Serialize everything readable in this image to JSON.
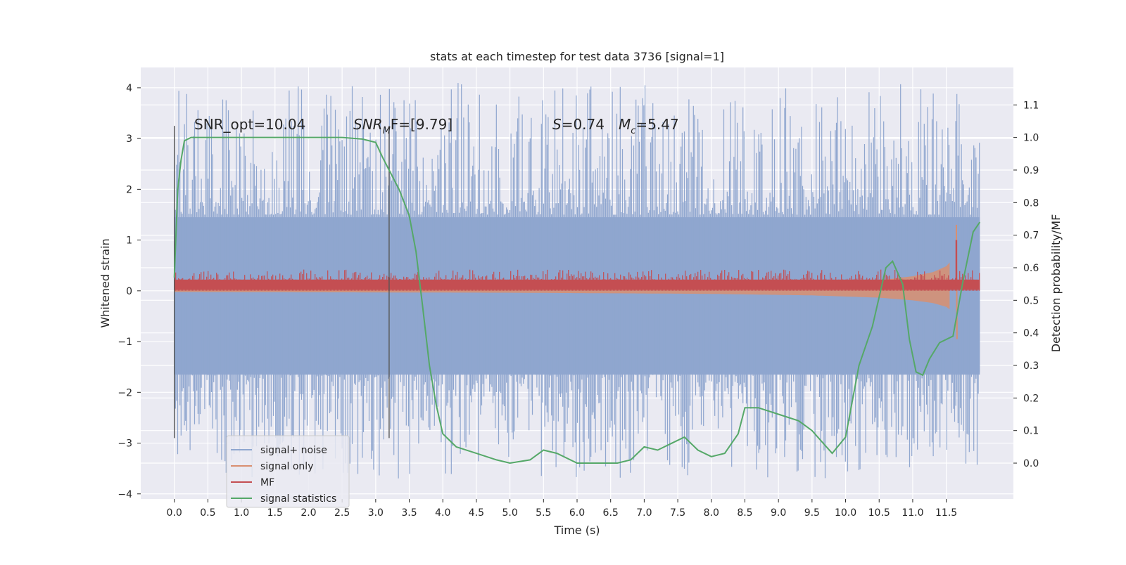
{
  "chart_data": {
    "type": "line",
    "title": "stats at each timestep for test data 3736 [signal=1]",
    "xlabel": "Time (s)",
    "ylabel": "Whitened strain",
    "y2label": "Detection probability/MF",
    "xlim": [
      -0.5,
      12.5
    ],
    "ylim": [
      -4.1,
      4.4
    ],
    "y2lim": [
      -0.11,
      1.215
    ],
    "x_ticks": [
      "0.0",
      "0.5",
      "1.0",
      "1.5",
      "2.0",
      "2.5",
      "3.0",
      "3.5",
      "4.0",
      "4.5",
      "5.0",
      "5.5",
      "6.0",
      "6.5",
      "7.0",
      "7.5",
      "8.0",
      "8.5",
      "9.0",
      "9.5",
      "10.0",
      "10.5",
      "11.0",
      "11.5"
    ],
    "y_ticks": [
      4,
      3,
      2,
      1,
      0,
      -1,
      -2,
      -3,
      -4
    ],
    "y_tick_labels": [
      "4",
      "3",
      "2",
      "1",
      "0",
      "−1",
      "−2",
      "−3",
      "−4"
    ],
    "y2_ticks": [
      1.1,
      1.0,
      0.9,
      0.8,
      0.7,
      0.6,
      0.5,
      0.4,
      0.3,
      0.2,
      0.1,
      0.0
    ],
    "y2_tick_labels": [
      "1.1",
      "1.0",
      "0.9",
      "0.8",
      "0.7",
      "0.6",
      "0.5",
      "0.4",
      "0.3",
      "0.2",
      "0.1",
      "0.0"
    ],
    "grid": true,
    "legend_placement": "lower-left",
    "vlines": [
      0.0,
      3.2
    ],
    "annotations": {
      "snr_opt": "SNR_opt=10.04",
      "snr_mf_sym": "SNR",
      "snr_mf_sub": "M",
      "snr_mf_rest": "F=[9.79]",
      "s_sym": "S",
      "s_rest": "=0.74",
      "mc_sym": "M",
      "mc_sub": "c",
      "mc_rest": "=5.47"
    },
    "series": [
      {
        "name": "signal+ noise",
        "color": "#8fa6cf",
        "kind": "noise",
        "x_range": [
          0.0,
          12.0
        ],
        "core_band": [
          -1.65,
          1.45
        ],
        "spike_range": [
          -3.7,
          4.1
        ]
      },
      {
        "name": "signal only",
        "color": "#d98f70",
        "kind": "chirp-envelope",
        "x": [
          0.0,
          5.0,
          8.0,
          9.5,
          10.5,
          11.0,
          11.3,
          11.5,
          11.6,
          11.65,
          11.7
        ],
        "amplitude": [
          0.03,
          0.05,
          0.08,
          0.12,
          0.18,
          0.25,
          0.32,
          0.42,
          0.55,
          1.3,
          -0.95
        ]
      },
      {
        "name": "MF",
        "color": "#c44e52",
        "kind": "band",
        "x_range": [
          0.0,
          12.0
        ],
        "band": [
          0.0,
          0.25
        ],
        "peak": {
          "x": 11.65,
          "y": 1.0
        }
      },
      {
        "name": "signal statistics",
        "color": "#55a868",
        "axis": "right",
        "x": [
          0.0,
          0.05,
          0.1,
          0.15,
          0.25,
          0.5,
          1.0,
          1.5,
          2.0,
          2.5,
          2.8,
          3.0,
          3.1,
          3.2,
          3.35,
          3.5,
          3.6,
          3.7,
          3.8,
          3.9,
          4.0,
          4.2,
          4.5,
          4.8,
          5.0,
          5.3,
          5.5,
          5.7,
          6.0,
          6.3,
          6.6,
          6.8,
          7.0,
          7.2,
          7.4,
          7.6,
          7.8,
          8.0,
          8.2,
          8.4,
          8.5,
          8.7,
          9.0,
          9.3,
          9.5,
          9.8,
          10.0,
          10.2,
          10.4,
          10.6,
          10.7,
          10.85,
          10.95,
          11.05,
          11.15,
          11.25,
          11.4,
          11.6,
          11.75,
          11.9,
          12.0
        ],
        "y": [
          0.57,
          0.84,
          0.93,
          0.99,
          1.0,
          1.0,
          1.0,
          1.0,
          1.0,
          1.0,
          0.995,
          0.985,
          0.94,
          0.9,
          0.84,
          0.76,
          0.65,
          0.48,
          0.3,
          0.18,
          0.09,
          0.05,
          0.03,
          0.01,
          0.0,
          0.01,
          0.04,
          0.03,
          0.0,
          0.0,
          0.0,
          0.01,
          0.05,
          0.04,
          0.06,
          0.08,
          0.04,
          0.02,
          0.03,
          0.09,
          0.17,
          0.17,
          0.15,
          0.13,
          0.1,
          0.03,
          0.08,
          0.3,
          0.42,
          0.6,
          0.62,
          0.55,
          0.38,
          0.28,
          0.27,
          0.32,
          0.37,
          0.39,
          0.56,
          0.71,
          0.74
        ]
      }
    ]
  }
}
